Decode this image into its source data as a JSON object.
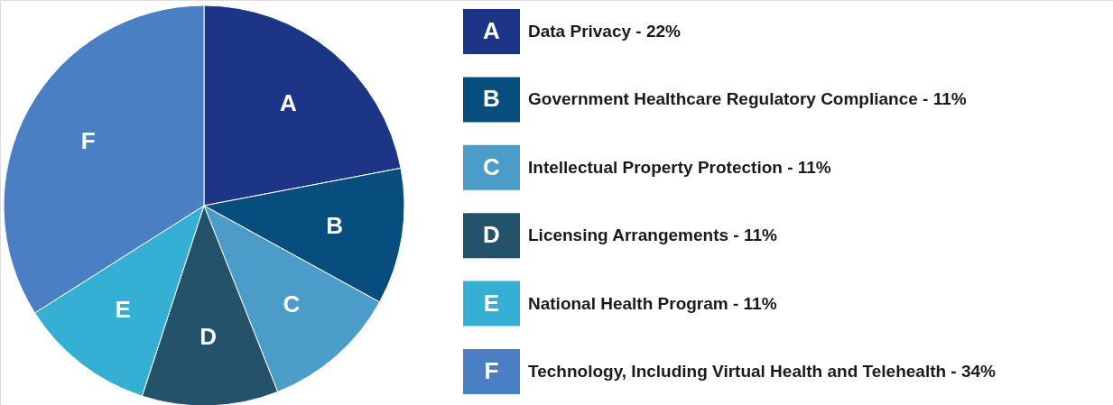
{
  "chart_data": {
    "type": "pie",
    "categories": [
      "A",
      "B",
      "C",
      "D",
      "E",
      "F"
    ],
    "values": [
      22,
      11,
      11,
      11,
      11,
      34
    ],
    "colors": [
      "#1d3586",
      "#074d7e",
      "#4b9cc9",
      "#23526a",
      "#35afd3",
      "#4a80c3"
    ],
    "annotations": [
      "Data Privacy - 22%",
      "Government Healthcare Regulatory Compliance - 11%",
      "Intellectual Property Protection - 11%",
      "Licensing Arrangements - 11%",
      "National Health Program - 11%",
      "Technology, Including Virtual Health and Telehealth - 34%"
    ]
  }
}
